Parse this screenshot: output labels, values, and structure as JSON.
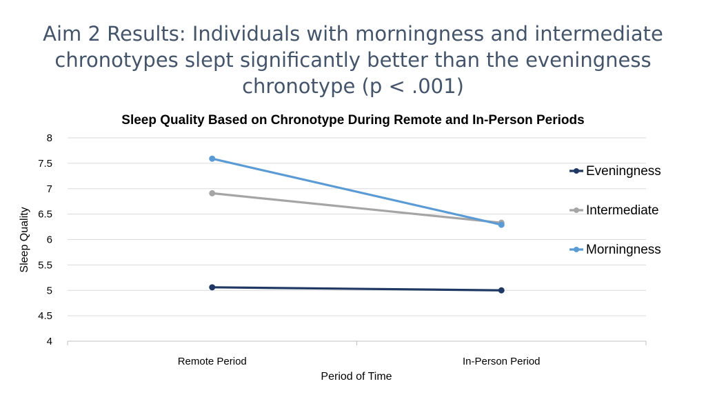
{
  "slide": {
    "title": "Aim 2 Results: Individuals with morningness and intermediate chronotypes slept significantly better than the eveningness chronotype (p < .001)"
  },
  "chart_data": {
    "type": "line",
    "title": "Sleep Quality Based on Chronotype During Remote and In-Person Periods",
    "xlabel": "Period of Time",
    "ylabel": "Sleep Quality",
    "categories": [
      "Remote Period",
      "In-Person Period"
    ],
    "ylim": [
      4,
      8
    ],
    "yticks": [
      4,
      4.5,
      5,
      5.5,
      6,
      6.5,
      7,
      7.5,
      8
    ],
    "ytick_labels": [
      "4",
      "4.5",
      "5",
      "5.5",
      "6",
      "6.5",
      "7",
      "7.5",
      "8"
    ],
    "grid": true,
    "legend": "right",
    "series": [
      {
        "name": "Eveningness",
        "values": [
          5.06,
          5.0
        ],
        "color": "#1f3864"
      },
      {
        "name": "Intermediate",
        "values": [
          6.91,
          6.33
        ],
        "color": "#a5a5a5"
      },
      {
        "name": "Morningness",
        "values": [
          7.59,
          6.29
        ],
        "color": "#5b9bd5"
      }
    ]
  }
}
